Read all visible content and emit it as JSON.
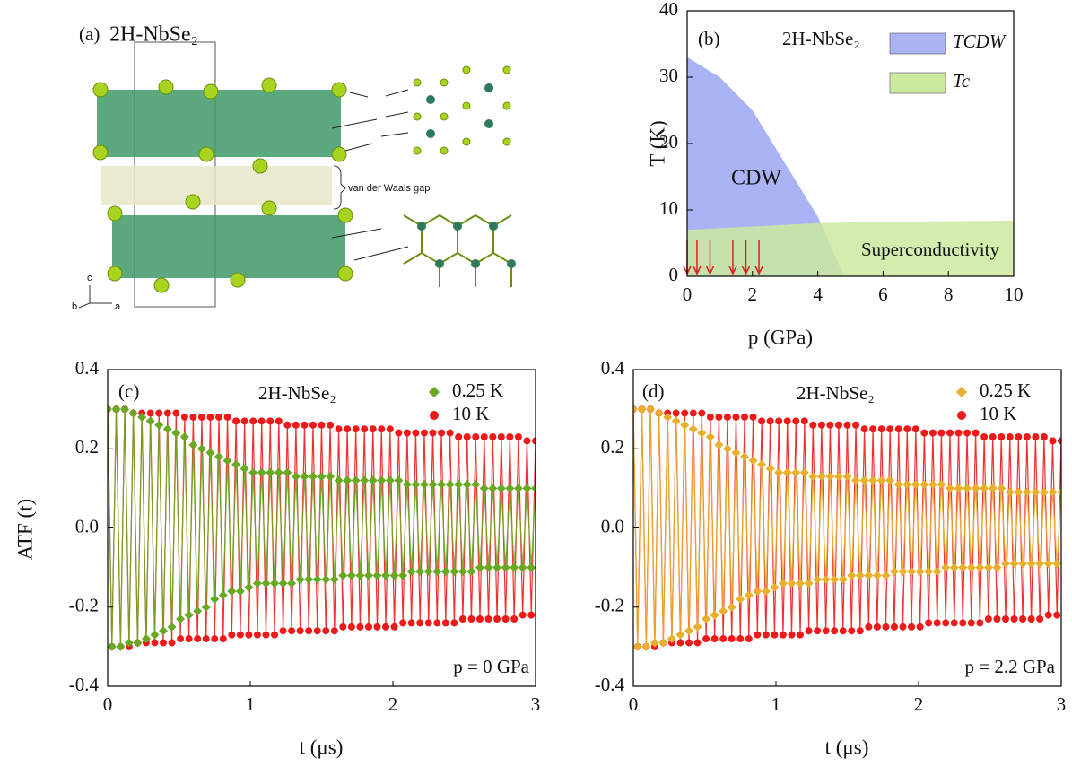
{
  "figure_a": {
    "label": "(a)",
    "sample": "2H-NbSe₂",
    "gap_label": "van der Waals gap",
    "axis_c": "c",
    "axis_b": "b",
    "axis_a": "a"
  },
  "chart_data": [
    {
      "type": "area",
      "label": "(b)",
      "sample": "2H-NbSe₂",
      "xlabel": "p (GPa)",
      "ylabel": "T (K)",
      "annotations": [
        "CDW",
        "Superconductivity"
      ],
      "xlim": [
        0,
        10
      ],
      "ylim": [
        0,
        40
      ],
      "xticks": [
        0,
        2,
        4,
        6,
        8,
        10
      ],
      "yticks": [
        0,
        10,
        20,
        30,
        40
      ],
      "legend": "upper right",
      "series": [
        {
          "name": "TCDW",
          "color": "#aab4f4",
          "x": [
            0,
            1,
            2,
            3,
            4,
            4.8
          ],
          "values": [
            33,
            30,
            25,
            17,
            9,
            0
          ]
        },
        {
          "name": "Tc",
          "color": "#cce9a0",
          "x": [
            0,
            2,
            4,
            6,
            8,
            10
          ],
          "values": [
            7,
            7.5,
            8,
            8.2,
            8.3,
            8.4
          ]
        }
      ],
      "arrows_x": [
        0,
        0.3,
        0.7,
        1.4,
        1.8,
        2.2
      ],
      "arrow_color": "#e02020"
    },
    {
      "type": "line",
      "label": "(c)",
      "sample": "2H-NbSe₂",
      "xlabel": "t (μs)",
      "ylabel": "ATF (t)",
      "annotation": "p = 0 GPa",
      "xlim": [
        0,
        3
      ],
      "ylim": [
        -0.4,
        0.4
      ],
      "xticks": [
        0,
        1,
        2,
        3
      ],
      "yticks": [
        -0.4,
        -0.2,
        {
          "value": 0,
          "label": "0.0"
        },
        0.2,
        0.4
      ],
      "legend": "upper right",
      "x": [
        0,
        0.03,
        0.06,
        0.09,
        0.12,
        0.15,
        0.18,
        0.21,
        0.24,
        0.27,
        0.3,
        0.33,
        0.36,
        0.39,
        0.42,
        0.45,
        0.48,
        0.51,
        0.54,
        0.57,
        0.6,
        0.63,
        0.66,
        0.69,
        0.72,
        0.75,
        0.78,
        0.81,
        0.84,
        0.87,
        0.9,
        0.93,
        0.96,
        0.99,
        1.02,
        1.05,
        1.08,
        1.11,
        1.14,
        1.17,
        1.2,
        1.23,
        1.26,
        1.29,
        1.32,
        1.35,
        1.38,
        1.41,
        1.44,
        1.47,
        1.5,
        1.53,
        1.56,
        1.59,
        1.62,
        1.65,
        1.68,
        1.71,
        1.74,
        1.77,
        1.8,
        1.83,
        1.86,
        1.89,
        1.92,
        1.95,
        1.98,
        2.01,
        2.04,
        2.07,
        2.1,
        2.13,
        2.16,
        2.19,
        2.22,
        2.25,
        2.28,
        2.31,
        2.34,
        2.37,
        2.4,
        2.43,
        2.46,
        2.49,
        2.52,
        2.55,
        2.58,
        2.61,
        2.64,
        2.67,
        2.7,
        2.73,
        2.76,
        2.79,
        2.82,
        2.85,
        2.88,
        2.91,
        2.94,
        2.97,
        3
      ],
      "series": [
        {
          "name": "0.25 K",
          "color": "#6aa824",
          "marker": "diamond",
          "values": [
            0.3,
            -0.3,
            0.3,
            -0.3,
            0.3,
            -0.29,
            0.29,
            -0.29,
            0.28,
            -0.28,
            0.27,
            -0.27,
            0.26,
            -0.26,
            0.25,
            -0.25,
            0.24,
            -0.23,
            0.23,
            -0.22,
            0.21,
            -0.21,
            0.2,
            -0.2,
            0.19,
            -0.18,
            0.18,
            -0.17,
            0.17,
            -0.16,
            0.16,
            -0.16,
            0.15,
            -0.15,
            0.14,
            -0.14,
            0.14,
            -0.14,
            0.14,
            -0.14,
            0.14,
            -0.14,
            0.14,
            -0.14,
            0.13,
            -0.13,
            0.13,
            -0.13,
            0.13,
            -0.13,
            0.13,
            -0.13,
            0.13,
            -0.13,
            0.12,
            -0.12,
            0.12,
            -0.12,
            0.12,
            -0.12,
            0.12,
            -0.12,
            0.12,
            -0.12,
            0.12,
            -0.12,
            0.12,
            -0.12,
            0.12,
            -0.12,
            0.11,
            -0.11,
            0.11,
            -0.11,
            0.11,
            -0.11,
            0.11,
            -0.11,
            0.11,
            -0.11,
            0.11,
            -0.11,
            0.11,
            -0.11,
            0.11,
            -0.11,
            0.11,
            -0.1,
            0.1,
            -0.1,
            0.1,
            -0.1,
            0.1,
            -0.1,
            0.1,
            -0.1,
            0.1,
            -0.1,
            0.1,
            -0.1,
            0.1
          ]
        },
        {
          "name": "10 K",
          "color": "#ee1a1a",
          "marker": "circle",
          "values": [
            0.3,
            -0.3,
            0.3,
            -0.3,
            0.3,
            -0.3,
            0.29,
            -0.29,
            0.29,
            -0.29,
            0.29,
            -0.29,
            0.29,
            -0.29,
            0.29,
            -0.29,
            0.29,
            -0.28,
            0.28,
            -0.28,
            0.28,
            -0.28,
            0.28,
            -0.28,
            0.28,
            -0.28,
            0.28,
            -0.28,
            0.28,
            -0.27,
            0.27,
            -0.27,
            0.27,
            -0.27,
            0.27,
            -0.27,
            0.27,
            -0.27,
            0.27,
            -0.27,
            0.27,
            -0.26,
            0.26,
            -0.26,
            0.26,
            -0.26,
            0.26,
            -0.26,
            0.26,
            -0.26,
            0.26,
            -0.26,
            0.26,
            -0.26,
            0.25,
            -0.25,
            0.25,
            -0.25,
            0.25,
            -0.25,
            0.25,
            -0.25,
            0.25,
            -0.25,
            0.25,
            -0.25,
            0.25,
            -0.25,
            0.24,
            -0.24,
            0.24,
            -0.24,
            0.24,
            -0.24,
            0.24,
            -0.24,
            0.24,
            -0.24,
            0.24,
            -0.24,
            0.24,
            -0.24,
            0.23,
            -0.23,
            0.23,
            -0.23,
            0.23,
            -0.23,
            0.23,
            -0.23,
            0.23,
            -0.23,
            0.23,
            -0.23,
            0.23,
            -0.23,
            0.23,
            -0.22,
            0.22,
            -0.22,
            0.22
          ]
        }
      ]
    },
    {
      "type": "line",
      "label": "(d)",
      "sample": "2H-NbSe₂",
      "xlabel": "t (μs)",
      "annotation": "p = 2.2 GPa",
      "xlim": [
        0,
        3
      ],
      "ylim": [
        -0.4,
        0.4
      ],
      "xticks": [
        0,
        1,
        2,
        3
      ],
      "yticks": [
        -0.4,
        -0.2,
        {
          "value": 0,
          "label": "0.0"
        },
        0.2,
        0.4
      ],
      "legend": "upper right",
      "x": [
        0,
        0.03,
        0.06,
        0.09,
        0.12,
        0.15,
        0.18,
        0.21,
        0.24,
        0.27,
        0.3,
        0.33,
        0.36,
        0.39,
        0.42,
        0.45,
        0.48,
        0.51,
        0.54,
        0.57,
        0.6,
        0.63,
        0.66,
        0.69,
        0.72,
        0.75,
        0.78,
        0.81,
        0.84,
        0.87,
        0.9,
        0.93,
        0.96,
        0.99,
        1.02,
        1.05,
        1.08,
        1.11,
        1.14,
        1.17,
        1.2,
        1.23,
        1.26,
        1.29,
        1.32,
        1.35,
        1.38,
        1.41,
        1.44,
        1.47,
        1.5,
        1.53,
        1.56,
        1.59,
        1.62,
        1.65,
        1.68,
        1.71,
        1.74,
        1.77,
        1.8,
        1.83,
        1.86,
        1.89,
        1.92,
        1.95,
        1.98,
        2.01,
        2.04,
        2.07,
        2.1,
        2.13,
        2.16,
        2.19,
        2.22,
        2.25,
        2.28,
        2.31,
        2.34,
        2.37,
        2.4,
        2.43,
        2.46,
        2.49,
        2.52,
        2.55,
        2.58,
        2.61,
        2.64,
        2.67,
        2.7,
        2.73,
        2.76,
        2.79,
        2.82,
        2.85,
        2.88,
        2.91,
        2.94,
        2.97,
        3
      ],
      "series": [
        {
          "name": "0.25 K",
          "color": "#e8b02c",
          "marker": "diamond",
          "values": [
            0.3,
            -0.3,
            0.3,
            -0.3,
            0.3,
            -0.29,
            0.29,
            -0.29,
            0.28,
            -0.28,
            0.27,
            -0.27,
            0.26,
            -0.26,
            0.25,
            -0.25,
            0.24,
            -0.23,
            0.23,
            -0.22,
            0.21,
            -0.21,
            0.2,
            -0.2,
            0.19,
            -0.18,
            0.18,
            -0.17,
            0.17,
            -0.16,
            0.16,
            -0.16,
            0.15,
            -0.15,
            0.14,
            -0.14,
            0.14,
            -0.14,
            0.14,
            -0.14,
            0.14,
            -0.14,
            0.13,
            -0.13,
            0.13,
            -0.13,
            0.13,
            -0.13,
            0.13,
            -0.13,
            0.13,
            -0.12,
            0.12,
            -0.12,
            0.12,
            -0.12,
            0.12,
            -0.12,
            0.12,
            -0.12,
            0.12,
            -0.11,
            0.11,
            -0.11,
            0.11,
            -0.11,
            0.11,
            -0.11,
            0.11,
            -0.11,
            0.11,
            -0.11,
            0.11,
            -0.1,
            0.1,
            -0.1,
            0.1,
            -0.1,
            0.1,
            -0.1,
            0.1,
            -0.1,
            0.1,
            -0.1,
            0.1,
            -0.1,
            0.1,
            -0.09,
            0.09,
            -0.09,
            0.09,
            -0.09,
            0.09,
            -0.09,
            0.09,
            -0.09,
            0.09,
            -0.09,
            0.09,
            -0.09,
            0.09
          ]
        },
        {
          "name": "10 K",
          "color": "#ee1a1a",
          "marker": "circle",
          "values": [
            0.3,
            -0.3,
            0.3,
            -0.3,
            0.3,
            -0.3,
            0.29,
            -0.29,
            0.29,
            -0.29,
            0.29,
            -0.29,
            0.29,
            -0.29,
            0.29,
            -0.29,
            0.29,
            -0.28,
            0.28,
            -0.28,
            0.28,
            -0.28,
            0.28,
            -0.28,
            0.28,
            -0.28,
            0.28,
            -0.28,
            0.28,
            -0.27,
            0.27,
            -0.27,
            0.27,
            -0.27,
            0.27,
            -0.27,
            0.27,
            -0.27,
            0.27,
            -0.27,
            0.27,
            -0.26,
            0.26,
            -0.26,
            0.26,
            -0.26,
            0.26,
            -0.26,
            0.26,
            -0.26,
            0.26,
            -0.26,
            0.26,
            -0.26,
            0.25,
            -0.25,
            0.25,
            -0.25,
            0.25,
            -0.25,
            0.25,
            -0.25,
            0.25,
            -0.25,
            0.25,
            -0.25,
            0.25,
            -0.25,
            0.24,
            -0.24,
            0.24,
            -0.24,
            0.24,
            -0.24,
            0.24,
            -0.24,
            0.24,
            -0.24,
            0.24,
            -0.24,
            0.24,
            -0.24,
            0.23,
            -0.23,
            0.23,
            -0.23,
            0.23,
            -0.23,
            0.23,
            -0.23,
            0.23,
            -0.23,
            0.23,
            -0.23,
            0.23,
            -0.23,
            0.23,
            -0.22,
            0.22,
            -0.22,
            0.22
          ]
        }
      ]
    }
  ]
}
